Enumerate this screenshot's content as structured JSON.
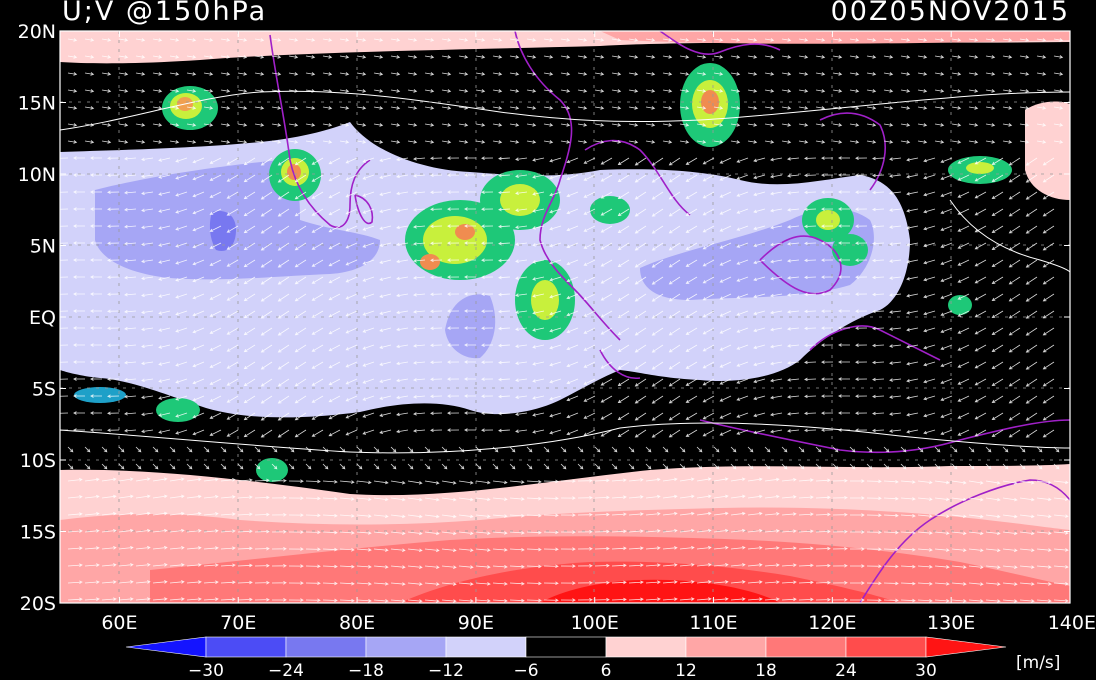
{
  "header": {
    "title": "U;V @150hPa",
    "datetime": "00Z05NOV2015"
  },
  "map": {
    "lon_range": [
      55,
      140
    ],
    "lat_range": [
      -20,
      20
    ],
    "lat_labels": [
      {
        "lat": 20,
        "label": "20N"
      },
      {
        "lat": 15,
        "label": "15N"
      },
      {
        "lat": 10,
        "label": "10N"
      },
      {
        "lat": 5,
        "label": "5N"
      },
      {
        "lat": 0,
        "label": "EQ"
      },
      {
        "lat": -5,
        "label": "5S"
      },
      {
        "lat": -10,
        "label": "10S"
      },
      {
        "lat": -15,
        "label": "15S"
      },
      {
        "lat": -20,
        "label": "20S"
      }
    ],
    "lon_labels": [
      {
        "lon": 60,
        "label": "60E"
      },
      {
        "lon": 70,
        "label": "70E"
      },
      {
        "lon": 80,
        "label": "80E"
      },
      {
        "lon": 90,
        "label": "90E"
      },
      {
        "lon": 100,
        "label": "100E"
      },
      {
        "lon": 110,
        "label": "110E"
      },
      {
        "lon": 120,
        "label": "120E"
      },
      {
        "lon": 130,
        "label": "130E"
      },
      {
        "lon": 140,
        "label": "140E"
      }
    ]
  },
  "colorbar": {
    "unit": "[m/s]",
    "ticks": [
      "-30",
      "-24",
      "-18",
      "-12",
      "-6",
      "6",
      "12",
      "18",
      "24",
      "30"
    ],
    "colors": [
      "#1414ff",
      "#4c4cf5",
      "#7878f0",
      "#a6a6f5",
      "#d2d2fa",
      "#000000",
      "#ffd2d2",
      "#ffa6a6",
      "#ff7878",
      "#ff4c4c",
      "#ff1414"
    ]
  }
}
